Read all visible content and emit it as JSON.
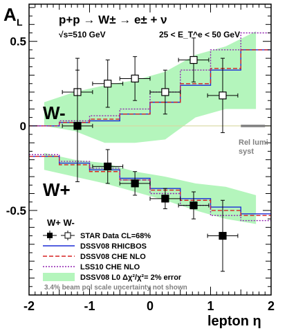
{
  "chart_data": {
    "type": "scatter",
    "ylabel_main": "A",
    "ylabel_sub": "L",
    "xlabel": "lepton  η",
    "title_line1": "p+p → W± → e± + ν",
    "title_line2a": "√s=510 GeV",
    "title_line2b": "25 < E_T^e < 50 GeV",
    "xlim": [
      -2,
      2
    ],
    "ylim": [
      -1,
      0.72
    ],
    "xticks": [
      {
        "value": -2,
        "label": "-2"
      },
      {
        "value": -1,
        "label": "-1"
      },
      {
        "value": 0,
        "label": "0"
      },
      {
        "value": 1,
        "label": "1"
      },
      {
        "value": 2,
        "label": "2"
      }
    ],
    "yticks": [
      {
        "value": 0.5,
        "label": "0.5"
      },
      {
        "value": 0,
        "label": "0"
      },
      {
        "value": -0.5,
        "label": "-0.5"
      }
    ],
    "wminus_label": "W-",
    "wplus_label": "W+",
    "rel_lumi_label_1": "Rel lumi",
    "rel_lumi_label_2": "syst",
    "rel_lumi_band": {
      "x": [
        1.5,
        1.9
      ],
      "y": 0.0
    },
    "band_wminus": {
      "x": [
        -1.75,
        -1.25,
        -0.75,
        -0.25,
        0.25,
        0.75,
        1.25,
        1.75
      ],
      "lower": [
        0.0,
        -0.03,
        -0.1,
        -0.1,
        -0.08,
        0.05,
        0.1,
        0.1
      ],
      "upper": [
        0.14,
        0.2,
        0.24,
        0.27,
        0.32,
        0.42,
        0.47,
        0.56
      ]
    },
    "band_wplus": {
      "x": [
        -1.75,
        -1.25,
        -0.75,
        -0.25,
        0.25,
        0.75,
        1.25,
        1.75
      ],
      "lower": [
        -0.26,
        -0.3,
        -0.34,
        -0.39,
        -0.44,
        -0.5,
        -0.55,
        -0.58
      ],
      "upper": [
        -0.16,
        -0.2,
        -0.22,
        -0.27,
        -0.3,
        -0.34,
        -0.36,
        -0.41
      ]
    },
    "theory_edges": [
      -2,
      -1.5,
      -1,
      -0.5,
      0,
      0.5,
      1,
      1.5,
      2
    ],
    "theory_series": [
      {
        "name": "DSSV08  RHICBOS",
        "color": "#1c2bd6",
        "dash": "",
        "wminus": [
          0.0,
          0.02,
          0.03,
          0.07,
          0.14,
          0.24,
          0.33,
          0.45
        ],
        "wplus": [
          -0.18,
          -0.22,
          -0.26,
          -0.31,
          -0.37,
          -0.43,
          -0.48,
          -0.52
        ]
      },
      {
        "name": "DSSV08  CHE NLO",
        "color": "#d62020",
        "dash": "6,3",
        "wminus": [
          0.0,
          0.02,
          0.04,
          0.07,
          0.14,
          0.25,
          0.34,
          0.45
        ],
        "wplus": [
          -0.18,
          -0.23,
          -0.27,
          -0.32,
          -0.38,
          -0.44,
          -0.5,
          -0.53
        ]
      },
      {
        "name": "LSS10 CHE NLO",
        "color": "#9020b0",
        "dash": "2,2",
        "wminus": [
          0.0,
          0.03,
          0.06,
          0.1,
          0.2,
          0.33,
          0.45,
          0.55
        ],
        "wplus": [
          -0.17,
          -0.21,
          -0.25,
          -0.32,
          -0.4,
          -0.47,
          -0.53,
          -0.56
        ]
      }
    ],
    "data_wminus": [
      {
        "x": -1.2,
        "y": 0.2,
        "xerr": 0.25,
        "yerr": 0.2
      },
      {
        "x": -0.7,
        "y": 0.25,
        "xerr": 0.25,
        "yerr": 0.14
      },
      {
        "x": -0.25,
        "y": 0.28,
        "xerr": 0.25,
        "yerr": 0.13
      },
      {
        "x": 0.25,
        "y": 0.2,
        "xerr": 0.25,
        "yerr": 0.13
      },
      {
        "x": 0.72,
        "y": 0.39,
        "xerr": 0.25,
        "yerr": 0.13
      },
      {
        "x": 1.2,
        "y": 0.18,
        "xerr": 0.25,
        "yerr": 0.22
      }
    ],
    "data_wplus": [
      {
        "x": -1.2,
        "y": 0.0,
        "xerr": 0.25,
        "yerr": 0.33
      },
      {
        "x": -0.7,
        "y": -0.24,
        "xerr": 0.25,
        "yerr": 0.1
      },
      {
        "x": -0.25,
        "y": -0.34,
        "xerr": 0.25,
        "yerr": 0.07
      },
      {
        "x": 0.25,
        "y": -0.43,
        "xerr": 0.25,
        "yerr": 0.06
      },
      {
        "x": 0.72,
        "y": -0.47,
        "xerr": 0.25,
        "yerr": 0.08
      },
      {
        "x": 1.2,
        "y": -0.65,
        "xerr": 0.25,
        "yerr": 0.21
      }
    ],
    "legend": {
      "wpair": "W+ W-",
      "star": "STAR Data CL=68%",
      "dssv_rhic": "DSSV08  RHICBOS",
      "dssv_che": "DSSV08  CHE NLO",
      "lss": "LSS10 CHE NLO",
      "band": "DSSV08 L0 Δχ²/χ²= 2% error",
      "note": "3.4% beam pol scale uncertainty not shown"
    },
    "colors": {
      "band": "#b4f5bc",
      "zero_line": "#d8d8a0",
      "rel_lumi": "#808080",
      "note": "#808080"
    }
  }
}
